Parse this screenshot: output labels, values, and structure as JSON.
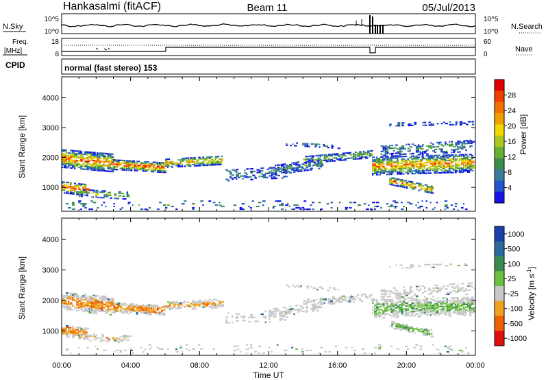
{
  "header": {
    "station": "Hankasalmi (fitACF)",
    "beam": "Beam 11",
    "date": "05/Jul/2013"
  },
  "noise_panel": {
    "left_label": "N.Sky",
    "left_ticks": [
      "10^5",
      "10^0"
    ],
    "right_ticks": [
      "10^5",
      "10^0"
    ],
    "right_label": "N.Search"
  },
  "freq_panel": {
    "left_label_1": "Freq.",
    "left_label_2": "[MHz]",
    "left_ticks": [
      "18",
      "8"
    ],
    "right_ticks": [
      "60",
      "0"
    ],
    "right_label": "Nave"
  },
  "cpid": {
    "label": "CPID",
    "value": "normal (fast stereo) 153"
  },
  "chart_data": [
    {
      "type": "heatmap",
      "name": "power",
      "ylabel": "Slant Range [km]",
      "xlabel": "",
      "x_ticks": [
        "00:00",
        "04:00",
        "08:00",
        "12:00",
        "16:00",
        "20:00",
        "00:00"
      ],
      "x_range_hours": [
        0,
        24
      ],
      "y_ticks": [
        1000,
        2000,
        3000,
        4000
      ],
      "ylim": [
        200,
        4700
      ],
      "colorbar": {
        "label": "Power [dB]",
        "range": [
          0,
          32
        ],
        "ticks": [
          "4",
          "8",
          "12",
          "16",
          "20",
          "24",
          "28"
        ],
        "colors": [
          "#1414e6",
          "#2255cc",
          "#3a7a9a",
          "#3c8c4c",
          "#66b034",
          "#a8c81c",
          "#f0d800",
          "#f0a000",
          "#f07000",
          "#f04000",
          "#e00000"
        ]
      }
    },
    {
      "type": "heatmap",
      "name": "velocity",
      "ylabel": "Slant Range [km]",
      "xlabel": "Time UT",
      "x_ticks": [
        "00:00",
        "04:00",
        "08:00",
        "12:00",
        "16:00",
        "20:00",
        "00:00"
      ],
      "x_range_hours": [
        0,
        24
      ],
      "y_ticks": [
        1000,
        2000,
        3000,
        4000
      ],
      "ylim": [
        200,
        4700
      ],
      "colorbar": {
        "label": "Velocity [m s^-1]",
        "ticks": [
          "1000",
          "500",
          "100",
          "25",
          "-25",
          "-100",
          "-500",
          "-1000"
        ],
        "colors": [
          "#1c3ea8",
          "#2c6a9c",
          "#3c8c50",
          "#6cc040",
          "#c8c8c8",
          "#f0a020",
          "#f06000",
          "#e01010"
        ]
      }
    }
  ]
}
